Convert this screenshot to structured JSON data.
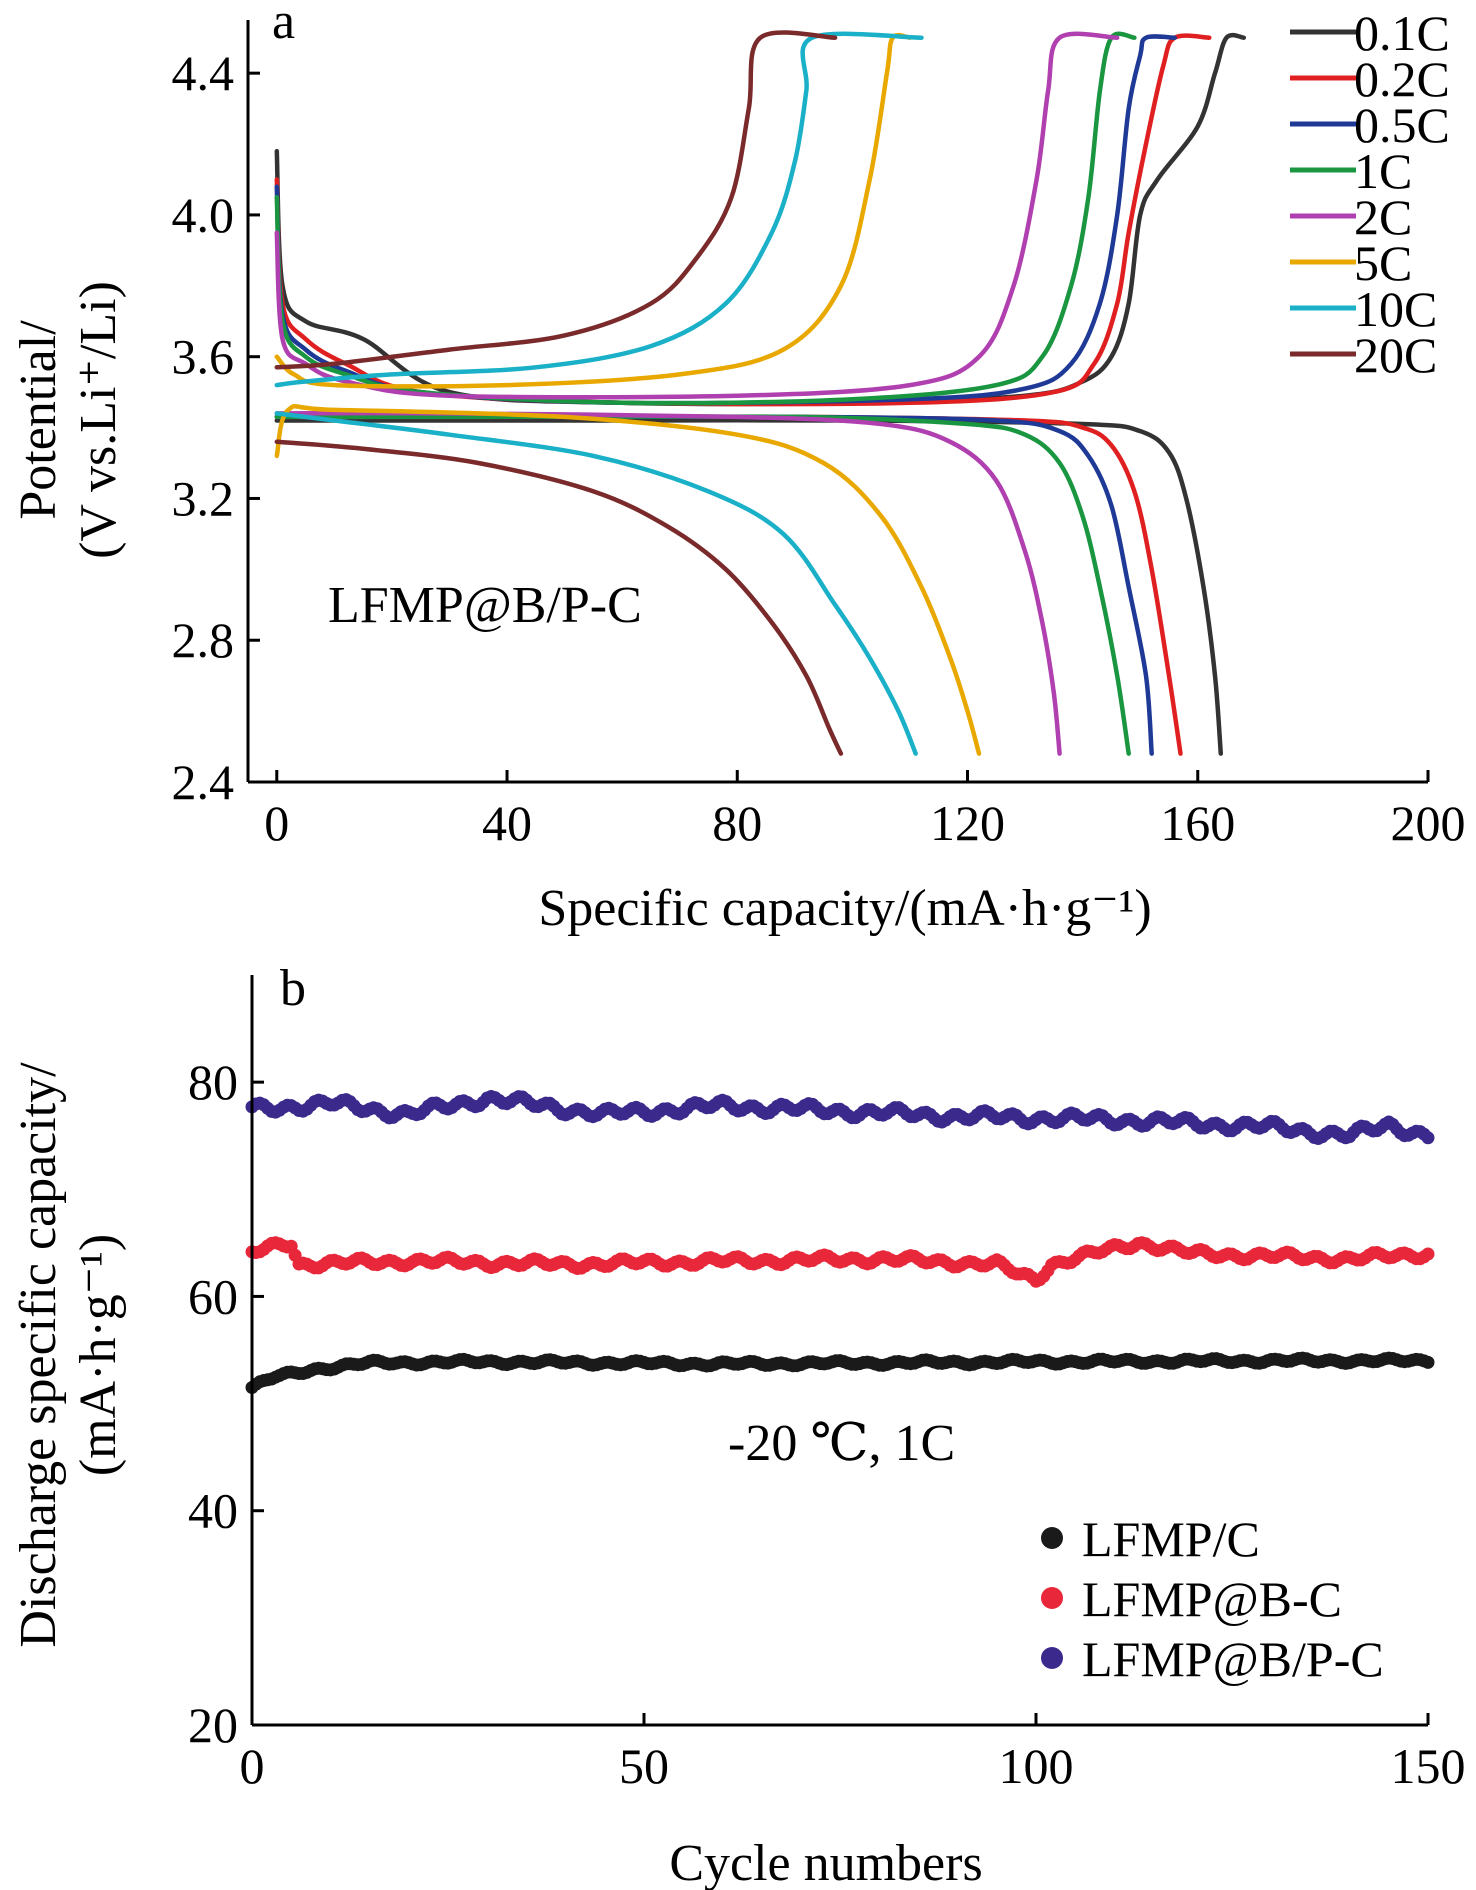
{
  "chart_data": [
    {
      "panel": "a",
      "type": "line",
      "xlabel": "Specific capacity/(mA·h·g⁻¹)",
      "ylabel_line1": "Potential/",
      "ylabel_line2": "(V vs.Li⁺/Li)",
      "xlim": [
        -5,
        200
      ],
      "ylim": [
        2.4,
        4.55
      ],
      "xticks": [
        0,
        40,
        80,
        120,
        160,
        200
      ],
      "yticks": [
        2.4,
        2.8,
        3.2,
        3.6,
        4.0,
        4.4
      ],
      "annotation": "LFMP@B/P-C",
      "legend_position": "top-right",
      "series": [
        {
          "name": "0.1C",
          "color": "#333333",
          "charge": [
            [
              0,
              4.18
            ],
            [
              1,
              3.8
            ],
            [
              5,
              3.7
            ],
            [
              15,
              3.65
            ],
            [
              30,
              3.5
            ],
            [
              60,
              3.47
            ],
            [
              100,
              3.47
            ],
            [
              130,
              3.49
            ],
            [
              140,
              3.53
            ],
            [
              145,
              3.6
            ],
            [
              148,
              3.75
            ],
            [
              150,
              4.0
            ],
            [
              153,
              4.1
            ],
            [
              160,
              4.25
            ],
            [
              163,
              4.4
            ],
            [
              165,
              4.5
            ],
            [
              168,
              4.5
            ]
          ],
          "discharge": [
            [
              0,
              3.42
            ],
            [
              20,
              3.42
            ],
            [
              60,
              3.42
            ],
            [
              100,
              3.42
            ],
            [
              140,
              3.41
            ],
            [
              150,
              3.39
            ],
            [
              155,
              3.33
            ],
            [
              158,
              3.2
            ],
            [
              161,
              2.95
            ],
            [
              163,
              2.7
            ],
            [
              164,
              2.48
            ]
          ]
        },
        {
          "name": "0.2C",
          "color": "#e02020",
          "charge": [
            [
              0,
              4.1
            ],
            [
              1,
              3.75
            ],
            [
              5,
              3.65
            ],
            [
              12,
              3.58
            ],
            [
              25,
              3.5
            ],
            [
              60,
              3.47
            ],
            [
              110,
              3.47
            ],
            [
              135,
              3.5
            ],
            [
              142,
              3.58
            ],
            [
              146,
              3.75
            ],
            [
              148,
              3.95
            ],
            [
              151,
              4.2
            ],
            [
              154,
              4.42
            ],
            [
              156,
              4.5
            ],
            [
              162,
              4.5
            ]
          ],
          "discharge": [
            [
              0,
              3.43
            ],
            [
              30,
              3.43
            ],
            [
              90,
              3.43
            ],
            [
              130,
              3.42
            ],
            [
              140,
              3.4
            ],
            [
              145,
              3.35
            ],
            [
              149,
              3.22
            ],
            [
              152,
              3.0
            ],
            [
              155,
              2.7
            ],
            [
              157,
              2.48
            ]
          ]
        },
        {
          "name": "0.5C",
          "color": "#1e3a96",
          "charge": [
            [
              0,
              4.08
            ],
            [
              1,
              3.72
            ],
            [
              5,
              3.62
            ],
            [
              12,
              3.56
            ],
            [
              25,
              3.5
            ],
            [
              60,
              3.47
            ],
            [
              110,
              3.48
            ],
            [
              130,
              3.51
            ],
            [
              138,
              3.58
            ],
            [
              143,
              3.75
            ],
            [
              146,
              4.0
            ],
            [
              148,
              4.3
            ],
            [
              150,
              4.45
            ],
            [
              151,
              4.5
            ],
            [
              156,
              4.5
            ]
          ],
          "discharge": [
            [
              0,
              3.43
            ],
            [
              30,
              3.43
            ],
            [
              90,
              3.43
            ],
            [
              125,
              3.42
            ],
            [
              136,
              3.39
            ],
            [
              141,
              3.32
            ],
            [
              145,
              3.18
            ],
            [
              148,
              2.95
            ],
            [
              151,
              2.7
            ],
            [
              152,
              2.48
            ]
          ]
        },
        {
          "name": "1C",
          "color": "#1a9641",
          "charge": [
            [
              0,
              4.05
            ],
            [
              1,
              3.7
            ],
            [
              5,
              3.6
            ],
            [
              12,
              3.55
            ],
            [
              25,
              3.5
            ],
            [
              60,
              3.47
            ],
            [
              100,
              3.48
            ],
            [
              125,
              3.52
            ],
            [
              133,
              3.6
            ],
            [
              138,
              3.8
            ],
            [
              141,
              4.05
            ],
            [
              143,
              4.35
            ],
            [
              145,
              4.5
            ],
            [
              149,
              4.5
            ]
          ],
          "discharge": [
            [
              0,
              3.43
            ],
            [
              30,
              3.43
            ],
            [
              90,
              3.43
            ],
            [
              120,
              3.41
            ],
            [
              130,
              3.38
            ],
            [
              136,
              3.3
            ],
            [
              140,
              3.15
            ],
            [
              143,
              2.95
            ],
            [
              146,
              2.7
            ],
            [
              148,
              2.48
            ]
          ]
        },
        {
          "name": "2C",
          "color": "#b040b0",
          "charge": [
            [
              0,
              3.95
            ],
            [
              1,
              3.65
            ],
            [
              5,
              3.58
            ],
            [
              12,
              3.53
            ],
            [
              30,
              3.49
            ],
            [
              80,
              3.49
            ],
            [
              110,
              3.52
            ],
            [
              122,
              3.6
            ],
            [
              128,
              3.8
            ],
            [
              132,
              4.1
            ],
            [
              134,
              4.35
            ],
            [
              136,
              4.5
            ],
            [
              146,
              4.5
            ]
          ],
          "discharge": [
            [
              0,
              3.44
            ],
            [
              30,
              3.44
            ],
            [
              80,
              3.43
            ],
            [
              105,
              3.41
            ],
            [
              117,
              3.36
            ],
            [
              125,
              3.25
            ],
            [
              130,
              3.05
            ],
            [
              133,
              2.85
            ],
            [
              135,
              2.65
            ],
            [
              136,
              2.48
            ]
          ]
        },
        {
          "name": "5C",
          "color": "#e8a800",
          "charge": [
            [
              0,
              3.6
            ],
            [
              3,
              3.55
            ],
            [
              10,
              3.52
            ],
            [
              40,
              3.52
            ],
            [
              70,
              3.55
            ],
            [
              88,
              3.62
            ],
            [
              98,
              3.8
            ],
            [
              103,
              4.1
            ],
            [
              106,
              4.4
            ],
            [
              107,
              4.5
            ],
            [
              110,
              4.5
            ]
          ],
          "discharge": [
            [
              0,
              3.32
            ],
            [
              2,
              3.45
            ],
            [
              10,
              3.45
            ],
            [
              50,
              3.43
            ],
            [
              80,
              3.38
            ],
            [
              95,
              3.3
            ],
            [
              105,
              3.15
            ],
            [
              112,
              2.95
            ],
            [
              117,
              2.75
            ],
            [
              120,
              2.6
            ],
            [
              122,
              2.48
            ]
          ]
        },
        {
          "name": "10C",
          "color": "#1ab0c8",
          "charge": [
            [
              0,
              3.52
            ],
            [
              5,
              3.53
            ],
            [
              20,
              3.55
            ],
            [
              45,
              3.57
            ],
            [
              65,
              3.63
            ],
            [
              78,
              3.75
            ],
            [
              86,
              3.95
            ],
            [
              90,
              4.15
            ],
            [
              92,
              4.35
            ],
            [
              93,
              4.5
            ],
            [
              112,
              4.5
            ]
          ],
          "discharge": [
            [
              0,
              3.44
            ],
            [
              10,
              3.42
            ],
            [
              30,
              3.38
            ],
            [
              55,
              3.32
            ],
            [
              75,
              3.22
            ],
            [
              88,
              3.1
            ],
            [
              97,
              2.9
            ],
            [
              103,
              2.75
            ],
            [
              108,
              2.6
            ],
            [
              111,
              2.48
            ]
          ]
        },
        {
          "name": "20C",
          "color": "#7a2a2a",
          "charge": [
            [
              0,
              3.57
            ],
            [
              10,
              3.58
            ],
            [
              30,
              3.62
            ],
            [
              50,
              3.66
            ],
            [
              65,
              3.75
            ],
            [
              73,
              3.88
            ],
            [
              79,
              4.05
            ],
            [
              82,
              4.3
            ],
            [
              84,
              4.5
            ],
            [
              97,
              4.5
            ]
          ],
          "discharge": [
            [
              0,
              3.36
            ],
            [
              15,
              3.34
            ],
            [
              35,
              3.3
            ],
            [
              55,
              3.22
            ],
            [
              68,
              3.12
            ],
            [
              78,
              3.0
            ],
            [
              86,
              2.85
            ],
            [
              92,
              2.7
            ],
            [
              96,
              2.55
            ],
            [
              98,
              2.48
            ]
          ]
        }
      ]
    },
    {
      "panel": "b",
      "type": "scatter",
      "xlabel": "Cycle numbers",
      "ylabel_line1": "Discharge specific capacity/",
      "ylabel_line2": "(mA·h·g⁻¹)",
      "xlim": [
        0,
        150
      ],
      "ylim": [
        20,
        90
      ],
      "xticks": [
        0,
        50,
        100,
        150
      ],
      "yticks": [
        20,
        40,
        60,
        80
      ],
      "annotation": "-20 ℃, 1C",
      "legend_position": "bottom-right",
      "series": [
        {
          "name": "LFMP/C",
          "color": "#1a1a1a",
          "anchors": [
            [
              0,
              51.5
            ],
            [
              3,
              52.5
            ],
            [
              8,
              53.2
            ],
            [
              15,
              53.8
            ],
            [
              30,
              53.9
            ],
            [
              60,
              53.7
            ],
            [
              100,
              53.9
            ],
            [
              130,
              54.0
            ],
            [
              150,
              54.0
            ]
          ],
          "jitter": 0.25
        },
        {
          "name": "LFMP@B-C",
          "color": "#e8283a",
          "anchors": [
            [
              0,
              64.0
            ],
            [
              2,
              64.5
            ],
            [
              5,
              65.0
            ],
            [
              6,
              63.0
            ],
            [
              20,
              63.3
            ],
            [
              40,
              63.0
            ],
            [
              60,
              63.3
            ],
            [
              80,
              63.5
            ],
            [
              95,
              63.0
            ],
            [
              98,
              62.0
            ],
            [
              100,
              61.6
            ],
            [
              102,
              63.0
            ],
            [
              110,
              64.5
            ],
            [
              113,
              65.0
            ],
            [
              120,
              64.0
            ],
            [
              140,
              63.5
            ],
            [
              150,
              64.0
            ]
          ],
          "jitter": 0.45
        },
        {
          "name": "LFMP@B/P-C",
          "color": "#3b2a8c",
          "anchors": [
            [
              0,
              77.5
            ],
            [
              10,
              78.0
            ],
            [
              20,
              77.0
            ],
            [
              30,
              78.5
            ],
            [
              45,
              77.0
            ],
            [
              60,
              77.8
            ],
            [
              75,
              77.3
            ],
            [
              90,
              76.8
            ],
            [
              110,
              76.5
            ],
            [
              130,
              75.8
            ],
            [
              140,
              75.0
            ],
            [
              145,
              76.0
            ],
            [
              150,
              75.0
            ]
          ],
          "jitter": 0.6
        }
      ]
    }
  ]
}
